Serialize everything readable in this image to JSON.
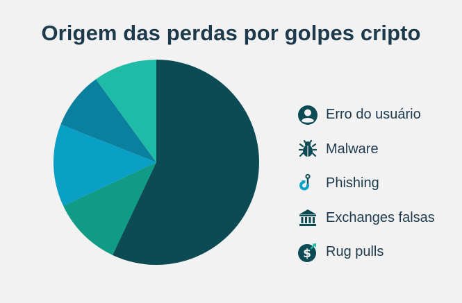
{
  "chart_data": {
    "type": "pie",
    "title": "Origem das perdas por golpes cripto",
    "slices": [
      {
        "value": 57,
        "color": "#0c4a54"
      },
      {
        "value": 11,
        "color": "#0f9b85"
      },
      {
        "value": 13,
        "color": "#0aa0c6"
      },
      {
        "value": 9,
        "color": "#0a7f9e"
      },
      {
        "value": 10,
        "color": "#1ebca6"
      }
    ],
    "legend_position": "right",
    "legend": [
      {
        "label": "Erro do usuário",
        "icon": "user-icon"
      },
      {
        "label": "Malware",
        "icon": "bug-icon"
      },
      {
        "label": "Phishing",
        "icon": "fishing-hook-icon"
      },
      {
        "label": "Exchanges falsas",
        "icon": "bank-icon"
      },
      {
        "label": "Rug pulls",
        "icon": "dollar-coin-icon"
      }
    ]
  }
}
